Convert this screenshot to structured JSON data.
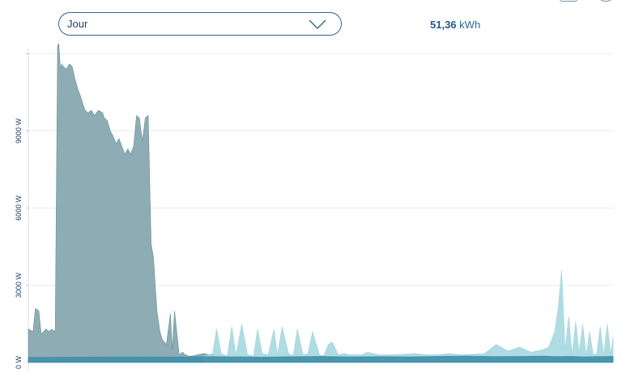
{
  "controls": {
    "period_label": "Jour",
    "total_value": "51,36",
    "total_unit": "kWh"
  },
  "chart_data": {
    "type": "area",
    "xlabel": "",
    "ylabel": "",
    "ylim": [
      0,
      12200
    ],
    "grid": true,
    "y_ticks": [
      {
        "value": 0,
        "label": "0 W"
      },
      {
        "value": 3000,
        "label": "3000 W"
      },
      {
        "value": 6000,
        "label": "6000 W"
      },
      {
        "value": 9000,
        "label": "9000 W"
      },
      {
        "value": 12000,
        "label": ""
      }
    ],
    "x_range": [
      0,
      100
    ],
    "series": [
      {
        "color": "#87a8b0",
        "x": [
          0,
          0.8,
          1.2,
          1.8,
          2.2,
          2.6,
          3.0,
          3.6,
          4.0,
          4.5,
          4.6,
          5.0,
          5.2,
          5.5,
          5.7,
          6.0,
          6.5,
          7.0,
          7.5,
          8.0,
          8.5,
          9.0,
          9.4,
          9.7,
          10.2,
          10.8,
          11.3,
          12.0,
          12.7,
          13.0,
          13.5,
          14.0,
          14.5,
          15.0,
          15.5,
          16.0,
          16.5,
          17.0,
          17.5,
          18.0,
          18.5,
          19.0,
          19.5,
          20.0,
          20.5,
          21.0,
          21.4,
          21.7,
          22.0,
          22.5,
          22.9,
          23.6,
          24.3,
          24.6,
          25.0,
          25.8,
          26.4,
          26.8,
          27.4,
          28.0,
          29.0,
          30.0,
          32.0,
          34.0,
          36.0,
          40.0,
          45.0,
          50.0,
          55.0,
          60.0,
          65.0,
          70.0,
          75.0,
          80.0,
          85.0,
          90.0,
          95.0,
          100.0
        ],
        "values": [
          1300,
          1200,
          2100,
          2000,
          1100,
          1200,
          1300,
          1200,
          1300,
          1200,
          1300,
          12300,
          12400,
          11400,
          11600,
          11500,
          11400,
          11600,
          11500,
          11000,
          10600,
          10300,
          10000,
          9800,
          9700,
          9800,
          9600,
          9800,
          9700,
          9500,
          9400,
          9000,
          8800,
          8500,
          8700,
          8400,
          8100,
          8300,
          8100,
          8400,
          9600,
          9500,
          8600,
          9500,
          9600,
          4600,
          4100,
          3000,
          2000,
          1200,
          900,
          700,
          1900,
          500,
          2000,
          300,
          400,
          300,
          250,
          250,
          300,
          350,
          250,
          200,
          250,
          220,
          200,
          220,
          200,
          230,
          220,
          200,
          220,
          210,
          230,
          220,
          220,
          230
        ]
      },
      {
        "color": "#a6d7df",
        "x": [
          30.0,
          31.5,
          32.2,
          33.0,
          34.0,
          34.8,
          35.5,
          36.5,
          37.5,
          38.5,
          39.2,
          40.0,
          41.0,
          42.0,
          42.6,
          43.4,
          44.5,
          45.3,
          46.0,
          47.0,
          47.8,
          48.6,
          49.8,
          50.5,
          51.3,
          52.0,
          53.0,
          54.0,
          55.0,
          57.0,
          58.0,
          60.0,
          62.0,
          64.0,
          66.0,
          68.0,
          70.0,
          72.0,
          74.0,
          76.0,
          78.0,
          80.0,
          82.0,
          84.0,
          86.0,
          88.0,
          89.0,
          90.0,
          90.6,
          91.2,
          91.8,
          92.4,
          93.0,
          93.6,
          94.2,
          94.8,
          95.4,
          96.0,
          96.6,
          97.2,
          97.8,
          98.4,
          99.0,
          99.6,
          100.0
        ],
        "values": [
          250,
          350,
          1300,
          350,
          250,
          1400,
          300,
          1500,
          300,
          250,
          1300,
          350,
          300,
          1300,
          300,
          1400,
          350,
          280,
          1300,
          300,
          350,
          1200,
          300,
          250,
          700,
          800,
          300,
          350,
          300,
          300,
          400,
          300,
          300,
          320,
          350,
          300,
          300,
          350,
          300,
          320,
          350,
          700,
          450,
          600,
          400,
          500,
          600,
          1200,
          2100,
          3600,
          500,
          1800,
          300,
          1600,
          400,
          1500,
          300,
          1200,
          300,
          350,
          1400,
          300,
          1500,
          350,
          1000
        ]
      },
      {
        "color": "#3f8fa8",
        "x": [
          0,
          10,
          20,
          25,
          30,
          40,
          50,
          55,
          60,
          65,
          70,
          75,
          80,
          85,
          88,
          90,
          93,
          95,
          97,
          100
        ],
        "values": [
          200,
          210,
          220,
          210,
          230,
          210,
          240,
          220,
          230,
          220,
          240,
          250,
          230,
          240,
          250,
          230,
          240,
          220,
          230,
          240
        ]
      }
    ]
  }
}
